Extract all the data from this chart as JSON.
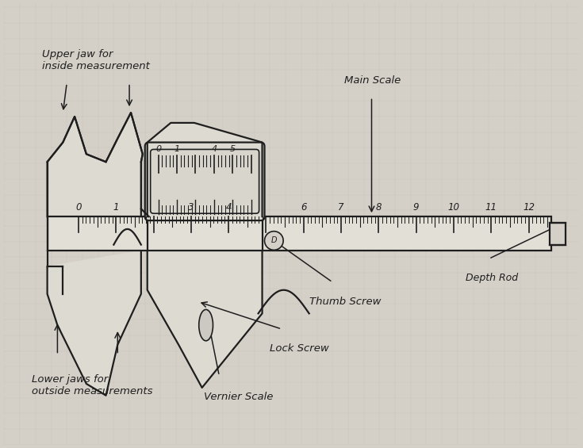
{
  "bg_color": "#d4d0c8",
  "line_color": "#1e1e1e",
  "text_color": "#1e1e1e",
  "labels": {
    "upper_jaw": "Upper jaw for\ninside measurement",
    "main_scale": "Main Scale",
    "lower_jaw": "Lower jaws for\noutside measurements",
    "vernier_scale": "Vernier Scale",
    "lock_screw": "Lock Screw",
    "thumb_screw": "Thumb Screw",
    "depth_rod": "Depth Rod"
  }
}
